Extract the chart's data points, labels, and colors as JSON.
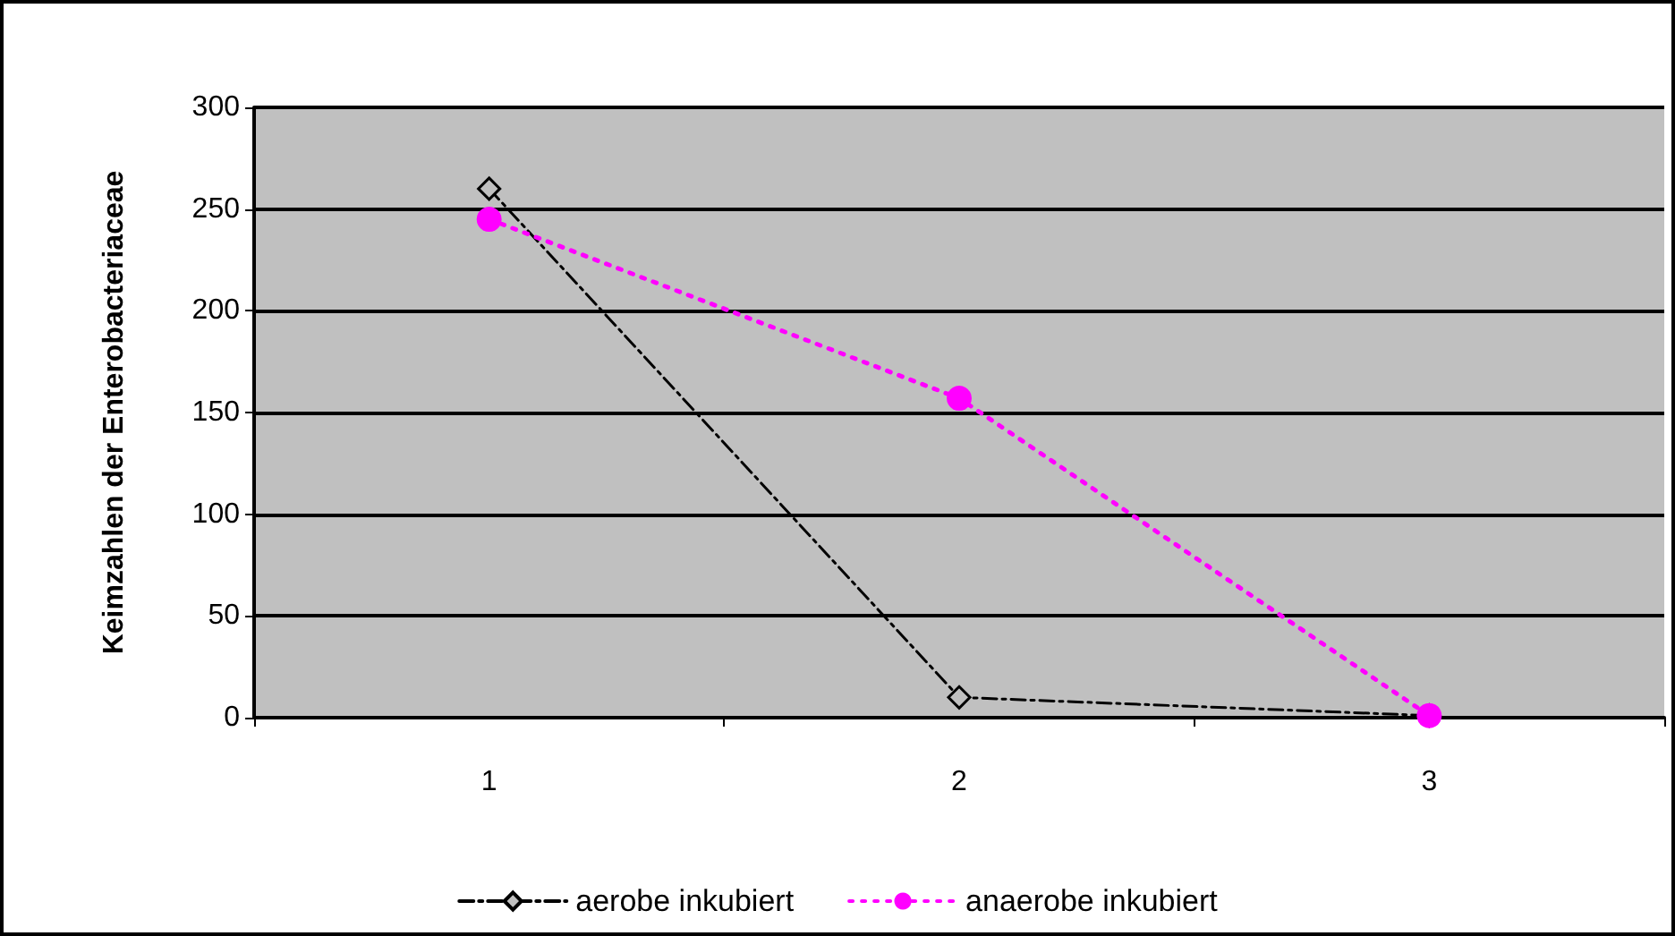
{
  "chart_data": {
    "type": "line",
    "ylabel": "Keimzahlen der Enterobacteriaceae",
    "categories": [
      "1",
      "2",
      "3"
    ],
    "series": [
      {
        "name": "aerobe inkubiert",
        "color": "#000000",
        "values": [
          260,
          10,
          1
        ],
        "marker": "diamond",
        "line_style": "dashed"
      },
      {
        "name": "anaerobe inkubiert",
        "color": "#ff00ff",
        "values": [
          245,
          157,
          1
        ],
        "marker": "circle",
        "line_style": "dotted"
      }
    ],
    "ylim": [
      0,
      300
    ],
    "yticks": [
      0,
      50,
      100,
      150,
      200,
      250,
      300
    ],
    "grid": "y",
    "legend": "bottom"
  }
}
